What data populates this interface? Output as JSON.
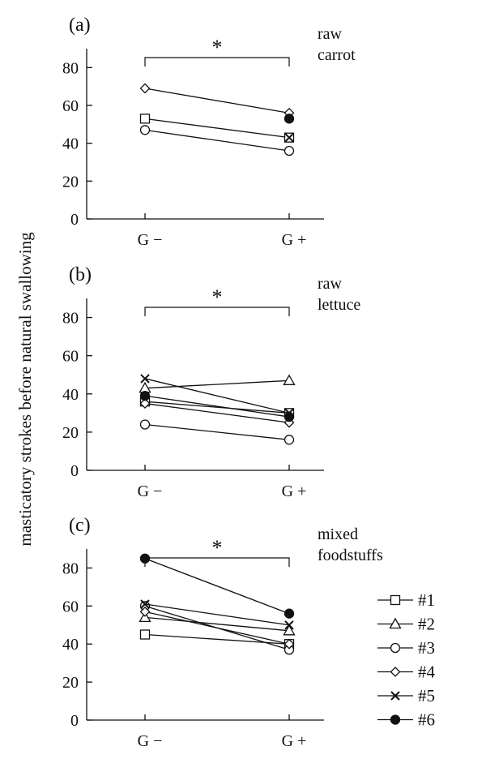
{
  "ylabel": "masticatory strokes before natural swallowing",
  "legend": [
    {
      "name": "#1",
      "marker": "square"
    },
    {
      "name": "#2",
      "marker": "triangle"
    },
    {
      "name": "#3",
      "marker": "circle"
    },
    {
      "name": "#4",
      "marker": "diamond"
    },
    {
      "name": "#5",
      "marker": "cross"
    },
    {
      "name": "#6",
      "marker": "filled-circle"
    }
  ],
  "chart_data": [
    {
      "type": "line",
      "panel_label": "(a)",
      "food_label": [
        "raw",
        "carrot"
      ],
      "categories": [
        "G −",
        "G +"
      ],
      "ylim": [
        0,
        90
      ],
      "yticks": [
        "0",
        "20",
        "40",
        "60",
        "80"
      ],
      "significance": "*",
      "series": [
        {
          "name": "#1",
          "values": [
            53,
            43
          ]
        },
        {
          "name": "#3",
          "values": [
            47,
            36
          ]
        },
        {
          "name": "#4",
          "values": [
            69,
            56
          ]
        },
        {
          "name": "#5",
          "values": [
            null,
            43
          ]
        },
        {
          "name": "#6",
          "values": [
            null,
            53
          ]
        }
      ]
    },
    {
      "type": "line",
      "panel_label": "(b)",
      "food_label": [
        "raw",
        "lettuce"
      ],
      "categories": [
        "G −",
        "G +"
      ],
      "ylim": [
        0,
        90
      ],
      "yticks": [
        "0",
        "20",
        "40",
        "60",
        "80"
      ],
      "significance": "*",
      "series": [
        {
          "name": "#1",
          "values": [
            36,
            30
          ]
        },
        {
          "name": "#2",
          "values": [
            43,
            47
          ]
        },
        {
          "name": "#3",
          "values": [
            24,
            16
          ]
        },
        {
          "name": "#4",
          "values": [
            35,
            25
          ]
        },
        {
          "name": "#5",
          "values": [
            48,
            30
          ]
        },
        {
          "name": "#6",
          "values": [
            39,
            28
          ]
        }
      ]
    },
    {
      "type": "line",
      "panel_label": "(c)",
      "food_label": [
        "mixed",
        "foodstuffs"
      ],
      "categories": [
        "G −",
        "G +"
      ],
      "ylim": [
        0,
        90
      ],
      "yticks": [
        "0",
        "20",
        "40",
        "60",
        "80"
      ],
      "significance": "*",
      "series": [
        {
          "name": "#1",
          "values": [
            45,
            40
          ]
        },
        {
          "name": "#2",
          "values": [
            54,
            47
          ]
        },
        {
          "name": "#3",
          "values": [
            60,
            37
          ]
        },
        {
          "name": "#4",
          "values": [
            57,
            40
          ]
        },
        {
          "name": "#5",
          "values": [
            61,
            50
          ]
        },
        {
          "name": "#6",
          "values": [
            85,
            56
          ]
        }
      ]
    }
  ]
}
